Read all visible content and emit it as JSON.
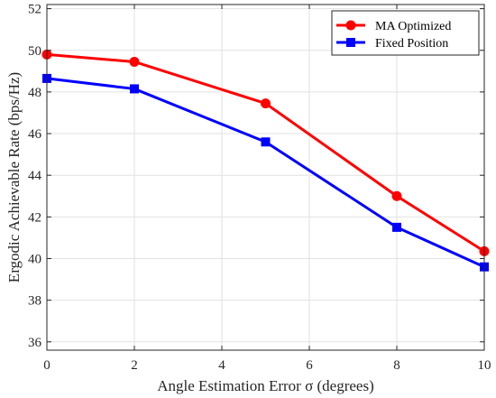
{
  "chart_data": {
    "type": "line",
    "x": [
      0,
      2,
      5,
      8,
      10
    ],
    "xlabel": "Angle Estimation Error σ (degrees)",
    "ylabel": "Ergodic Achievable Rate (bps/Hz)",
    "xlim": [
      0,
      10
    ],
    "ylim": [
      35.6,
      52.2
    ],
    "xticks": [
      0,
      2,
      4,
      6,
      8,
      10
    ],
    "yticks": [
      36,
      38,
      40,
      42,
      44,
      46,
      48,
      50,
      52
    ],
    "grid": true,
    "legend_position": "top-right",
    "series": [
      {
        "name": "MA Optimized",
        "color": "#ff0000",
        "marker": "circle",
        "values": [
          49.8,
          49.45,
          47.45,
          43.0,
          40.35
        ]
      },
      {
        "name": "Fixed Position",
        "color": "#0000ff",
        "marker": "square",
        "values": [
          48.65,
          48.15,
          45.6,
          41.5,
          39.6
        ]
      }
    ]
  }
}
